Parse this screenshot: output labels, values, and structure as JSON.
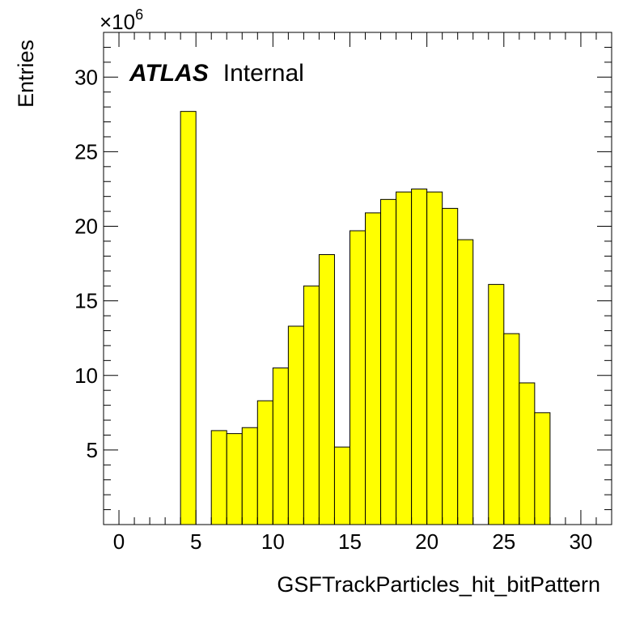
{
  "chart_data": {
    "type": "histogram",
    "xlabel": "GSFTrackParticles_hit_bitPattern",
    "ylabel": "Entries",
    "y_multiplier_label": "×10",
    "y_multiplier_exponent": "6",
    "atlas_label": "ATLAS",
    "atlas_sublabel": "Internal",
    "xlim": [
      -1,
      32
    ],
    "ylim": [
      0,
      33
    ],
    "x_ticks": [
      0,
      5,
      10,
      15,
      20,
      25,
      30
    ],
    "x_tick_labels": [
      "0",
      "5",
      "10",
      "15",
      "20",
      "25",
      "30"
    ],
    "y_ticks": [
      5,
      10,
      15,
      20,
      25,
      30
    ],
    "y_tick_labels": [
      "5",
      "10",
      "15",
      "20",
      "25",
      "30"
    ],
    "bin_width": 1,
    "bin_edges_start": 0,
    "values": [
      0,
      0,
      0,
      0,
      27.7,
      0,
      6.3,
      6.1,
      6.5,
      8.3,
      10.5,
      13.3,
      16.0,
      18.1,
      5.2,
      19.7,
      20.9,
      21.8,
      22.3,
      22.5,
      22.3,
      21.2,
      19.1,
      0,
      16.1,
      12.8,
      9.5,
      7.5,
      0,
      0,
      0,
      0
    ],
    "fill_color": "#ffff00",
    "line_color": "#000000",
    "grid": false
  }
}
